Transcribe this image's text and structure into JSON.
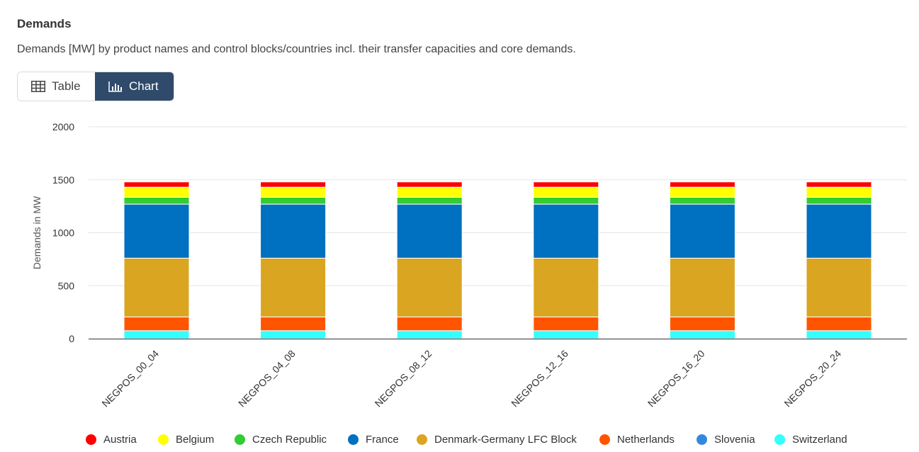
{
  "header": {
    "title": "Demands",
    "subtitle": "Demands [MW] by product names and control blocks/countries incl. their transfer capacities and core demands."
  },
  "view_toggle": {
    "table_label": "Table",
    "chart_label": "Chart",
    "active": "chart"
  },
  "chart_data": {
    "type": "bar",
    "stacked": true,
    "title": "",
    "xlabel": "",
    "ylabel": "Demands in MW",
    "ylim": [
      0,
      2000
    ],
    "yticks": [
      0,
      500,
      1000,
      1500,
      2000
    ],
    "grid": true,
    "legend_position": "bottom",
    "categories": [
      "NEGPOS_00_04",
      "NEGPOS_04_08",
      "NEGPOS_08_12",
      "NEGPOS_12_16",
      "NEGPOS_16_20",
      "NEGPOS_20_24"
    ],
    "series": [
      {
        "name": "Austria",
        "color": "#ff0000",
        "values": [
          50,
          50,
          50,
          50,
          50,
          50
        ]
      },
      {
        "name": "Belgium",
        "color": "#ffff00",
        "values": [
          95,
          95,
          95,
          95,
          95,
          95
        ]
      },
      {
        "name": "Czech Republic",
        "color": "#33cc33",
        "values": [
          65,
          65,
          65,
          65,
          65,
          65
        ]
      },
      {
        "name": "France",
        "color": "#0070c0",
        "values": [
          510,
          510,
          510,
          510,
          510,
          510
        ]
      },
      {
        "name": "Denmark-Germany LFC Block",
        "color": "#daa520",
        "values": [
          555,
          555,
          555,
          555,
          555,
          555
        ]
      },
      {
        "name": "Netherlands",
        "color": "#ff5500",
        "values": [
          130,
          130,
          130,
          130,
          130,
          130
        ]
      },
      {
        "name": "Slovenia",
        "color": "#3388dd",
        "values": [
          0,
          0,
          0,
          0,
          0,
          0
        ]
      },
      {
        "name": "Switzerland",
        "color": "#33ffff",
        "values": [
          75,
          75,
          75,
          75,
          75,
          75
        ]
      }
    ]
  }
}
